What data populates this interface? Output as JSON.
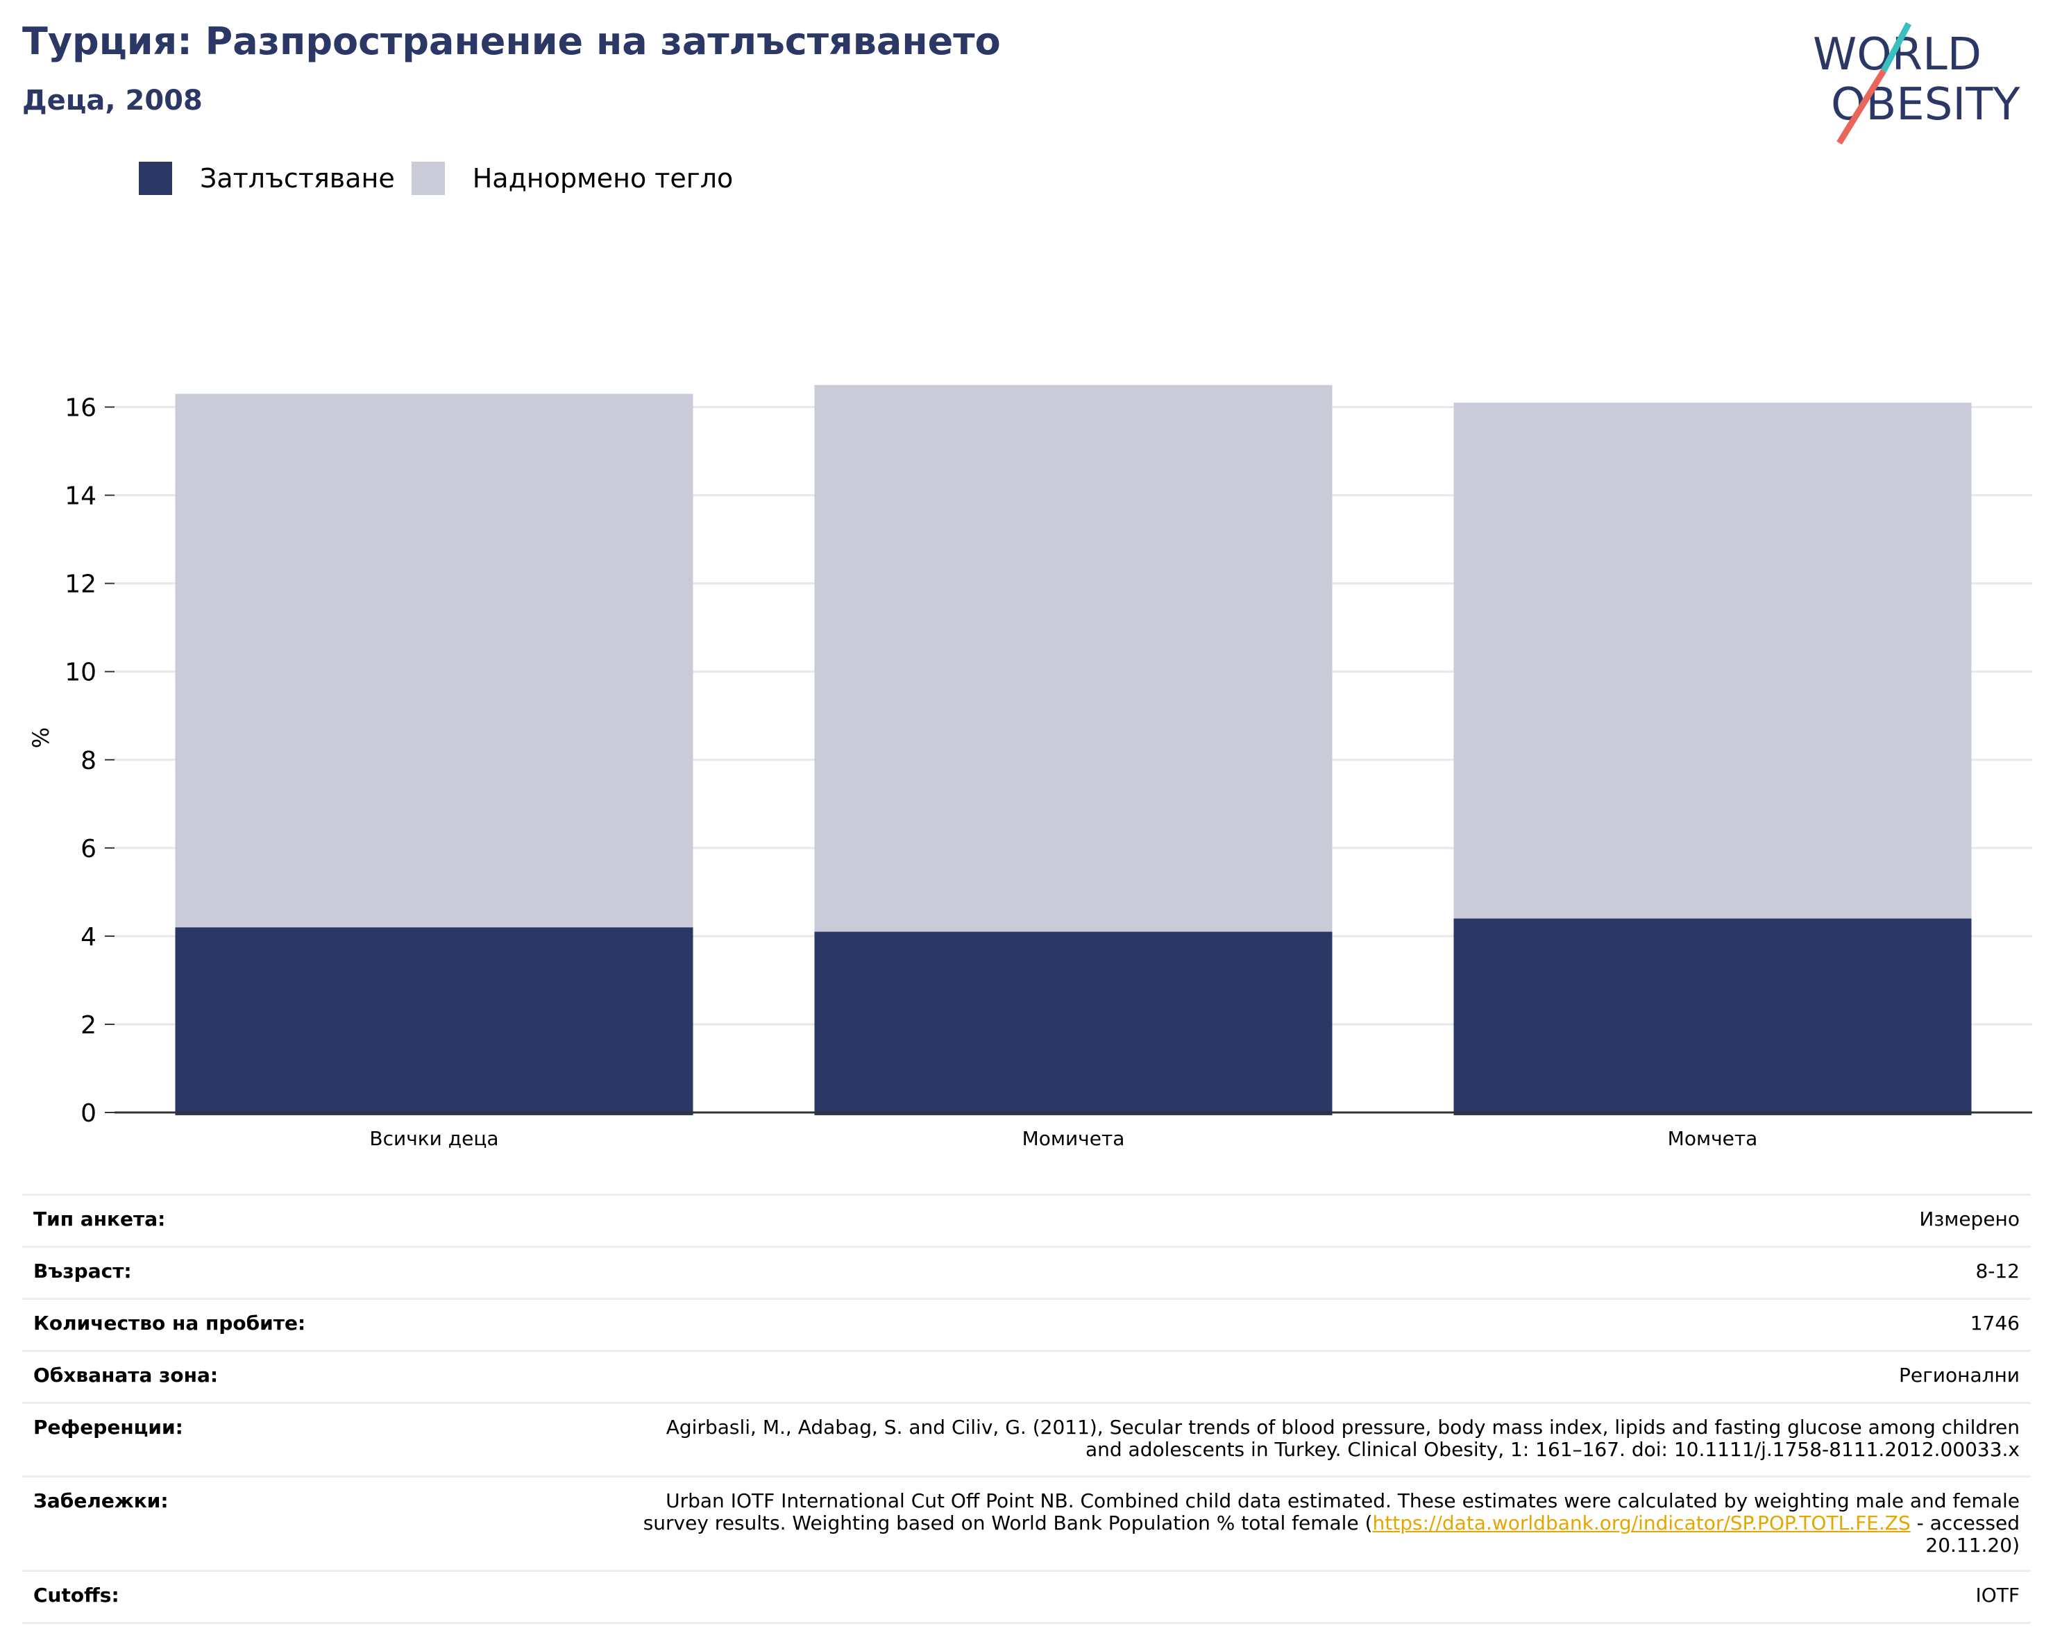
{
  "header": {
    "title": "Турция: Разпространение на затлъстяването",
    "subtitle": "Деца, 2008"
  },
  "logo": {
    "line1": "WORLD",
    "line2": "OBESITY",
    "colors": {
      "text": "#2b3765",
      "accent_teal": "#3bbfbf",
      "accent_red": "#e8665c"
    }
  },
  "colors": {
    "obesity": "#2b3765",
    "overweight": "#cacbd8",
    "grid": "#e7e7ef",
    "axis": "#333333"
  },
  "chart_data": {
    "type": "bar",
    "stacked": true,
    "categories": [
      "Всички деца",
      "Момичета",
      "Момчета"
    ],
    "series": [
      {
        "name": "Затлъстяване",
        "values": [
          4.2,
          4.1,
          4.4
        ]
      },
      {
        "name": "Наднормено тегло",
        "values": [
          12.1,
          12.4,
          11.7
        ]
      }
    ],
    "totals": [
      16.3,
      16.5,
      16.1
    ],
    "ylabel": "%",
    "xlabel": "",
    "ylim": [
      0,
      17
    ],
    "yticks": [
      0,
      2,
      4,
      6,
      8,
      10,
      12,
      14,
      16
    ],
    "grid": true,
    "legend": "top-left"
  },
  "info": {
    "survey_type": {
      "label": "Тип анкета:",
      "value": "Измерено"
    },
    "age": {
      "label": "Възраст:",
      "value": "8-12"
    },
    "sample_size": {
      "label": "Количество на пробите:",
      "value": "1746"
    },
    "area": {
      "label": "Обхваната зона:",
      "value": "Регионални"
    },
    "references": {
      "label": "Референции:",
      "line1": "Agirbasli, M., Adabag, S. and Ciliv, G. (2011), Secular trends of blood pressure, body mass index, lipids and fasting glucose among children",
      "line2": "and adolescents in Turkey. Clinical Obesity, 1: 161–167. doi: 10.1111/j.1758-8111.2012.00033.x"
    },
    "notes": {
      "label": "Забележки:",
      "line1": "Urban IOTF International Cut Off Point NB. Combined child data estimated. These estimates were calculated by weighting male and female",
      "line2_prefix": "survey results. Weighting based on World Bank Population % total female (",
      "link": "https://data.worldbank.org/indicator/SP.POP.TOTL.FE.ZS",
      "line2_suffix": " - accessed",
      "line3": "20.11.20)"
    },
    "cutoffs": {
      "label": "Cutoffs:",
      "value": "IOTF"
    }
  }
}
